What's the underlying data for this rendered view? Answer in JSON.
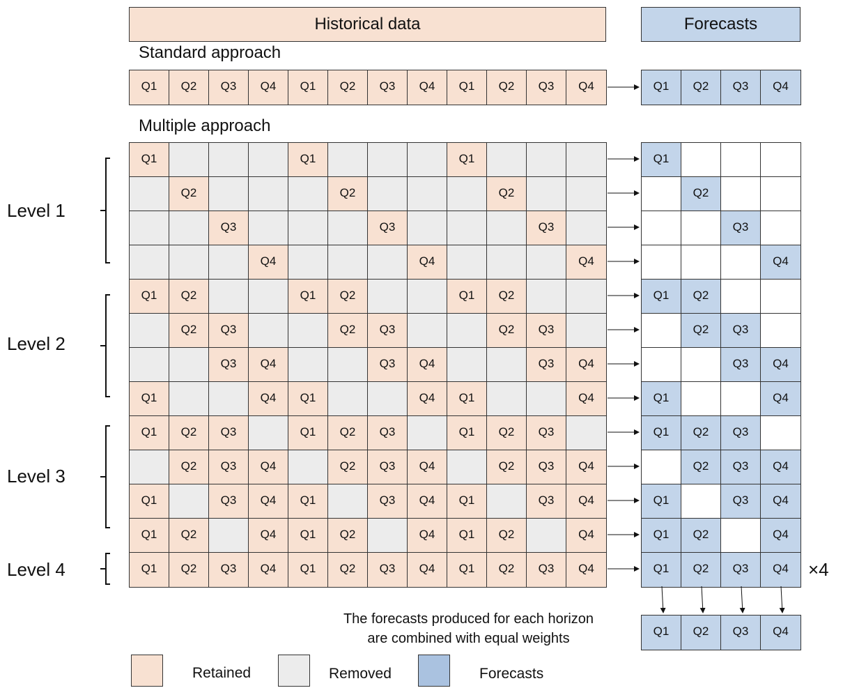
{
  "headers": {
    "historical": "Historical data",
    "forecasts": "Forecasts"
  },
  "sections": {
    "standard": "Standard approach",
    "multiple": "Multiple approach"
  },
  "quarters": [
    "Q1",
    "Q2",
    "Q3",
    "Q4"
  ],
  "standard_row": [
    "Q1",
    "Q2",
    "Q3",
    "Q4",
    "Q1",
    "Q2",
    "Q3",
    "Q4",
    "Q1",
    "Q2",
    "Q3",
    "Q4"
  ],
  "standard_forecast": [
    "Q1",
    "Q2",
    "Q3",
    "Q4"
  ],
  "levels": [
    {
      "label": "Level 1",
      "rows": [
        [
          1,
          0,
          0,
          0
        ],
        [
          0,
          1,
          0,
          0
        ],
        [
          0,
          0,
          1,
          0
        ],
        [
          0,
          0,
          0,
          1
        ]
      ]
    },
    {
      "label": "Level 2",
      "rows": [
        [
          1,
          1,
          0,
          0
        ],
        [
          0,
          1,
          1,
          0
        ],
        [
          0,
          0,
          1,
          1
        ],
        [
          1,
          0,
          0,
          1
        ]
      ]
    },
    {
      "label": "Level 3",
      "rows": [
        [
          1,
          1,
          1,
          0
        ],
        [
          0,
          1,
          1,
          1
        ],
        [
          1,
          0,
          1,
          1
        ],
        [
          1,
          1,
          0,
          1
        ]
      ]
    },
    {
      "label": "Level 4",
      "rows": [
        [
          1,
          1,
          1,
          1
        ]
      ]
    }
  ],
  "multiplier": "×4",
  "combined_forecast": [
    "Q1",
    "Q2",
    "Q3",
    "Q4"
  ],
  "note": {
    "line1": "The forecasts produced for each horizon",
    "line2": "are combined with equal weights"
  },
  "legend": [
    {
      "label": "Retained",
      "color": "#f8e1d2"
    },
    {
      "label": "Removed",
      "color": "#ececec"
    },
    {
      "label": "Forecasts",
      "color": "#c3d5ea"
    }
  ]
}
